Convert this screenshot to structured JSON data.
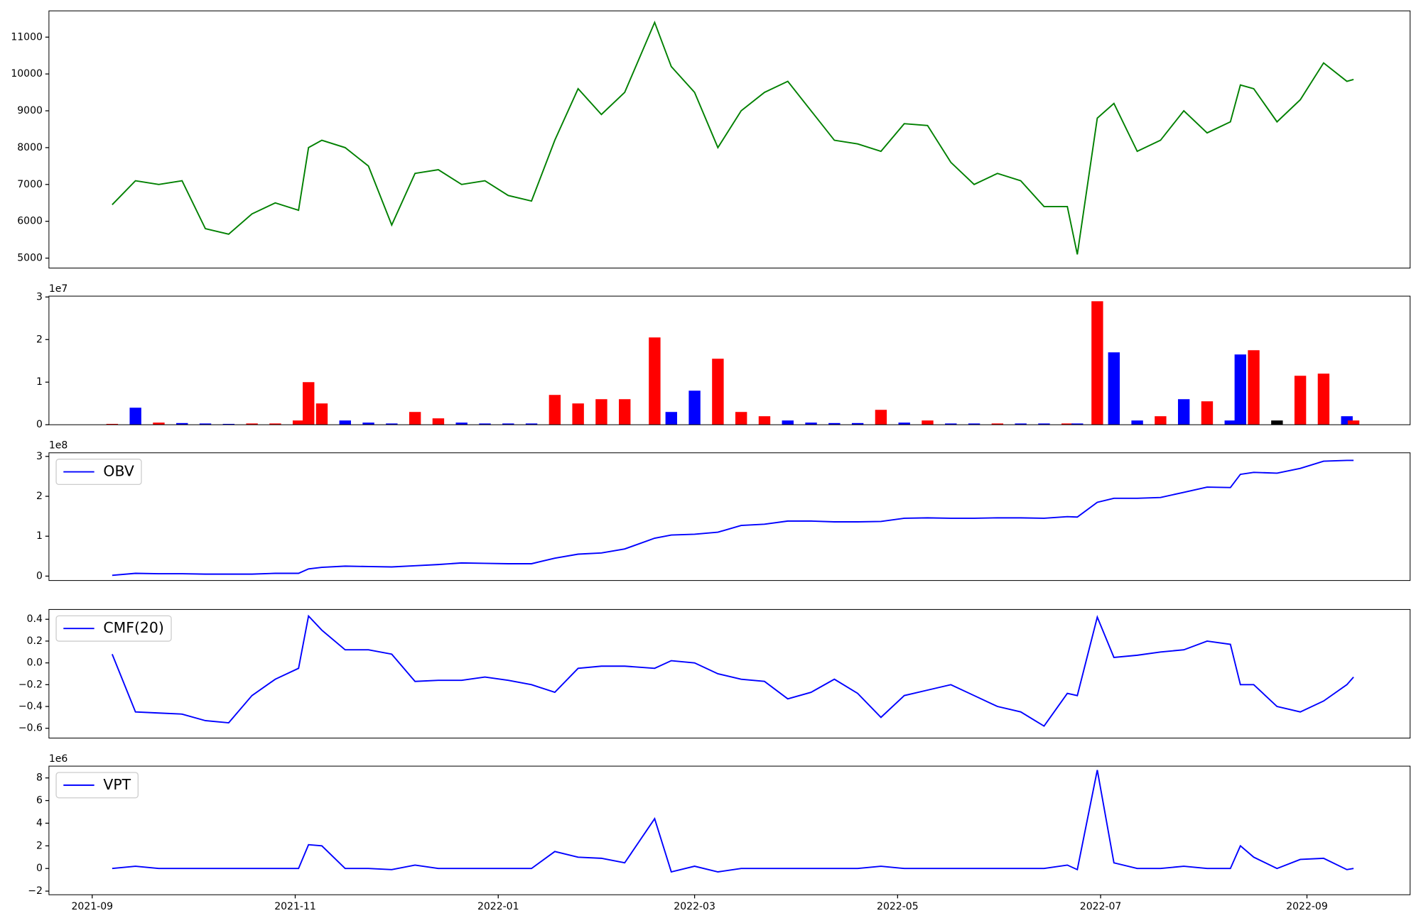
{
  "chart_data": [
    {
      "type": "line",
      "color": "green",
      "x": [
        "2021-09-07",
        "2021-09-14",
        "2021-09-21",
        "2021-09-28",
        "2021-10-05",
        "2021-10-12",
        "2021-10-19",
        "2021-10-26",
        "2021-11-02",
        "2021-11-05",
        "2021-11-09",
        "2021-11-16",
        "2021-11-23",
        "2021-11-30",
        "2021-12-07",
        "2021-12-14",
        "2021-12-21",
        "2021-12-28",
        "2022-01-04",
        "2022-01-11",
        "2022-01-18",
        "2022-01-25",
        "2022-02-01",
        "2022-02-08",
        "2022-02-17",
        "2022-02-22",
        "2022-03-01",
        "2022-03-08",
        "2022-03-15",
        "2022-03-22",
        "2022-03-29",
        "2022-04-05",
        "2022-04-12",
        "2022-04-19",
        "2022-04-26",
        "2022-05-03",
        "2022-05-10",
        "2022-05-17",
        "2022-05-24",
        "2022-05-31",
        "2022-06-07",
        "2022-06-14",
        "2022-06-21",
        "2022-06-24",
        "2022-06-30",
        "2022-07-05",
        "2022-07-12",
        "2022-07-19",
        "2022-07-26",
        "2022-08-02",
        "2022-08-09",
        "2022-08-12",
        "2022-08-16",
        "2022-08-23",
        "2022-08-30",
        "2022-09-06",
        "2022-09-13",
        "2022-09-15"
      ],
      "values": [
        6450,
        7100,
        7000,
        7100,
        5800,
        5650,
        6200,
        6500,
        6300,
        8000,
        8200,
        8000,
        7500,
        5900,
        7300,
        7400,
        7000,
        7100,
        6700,
        6550,
        8200,
        9600,
        8900,
        9500,
        11400,
        10200,
        9500,
        8000,
        9000,
        9500,
        9800,
        9000,
        8200,
        8100,
        7900,
        8650,
        8600,
        7600,
        7000,
        7300,
        7100,
        6400,
        6400,
        5100,
        8800,
        9200,
        7900,
        8200,
        9000,
        8400,
        8700,
        9700,
        9600,
        8700,
        9300,
        10300,
        9800,
        9850
      ],
      "xlim": [
        "2021-08-19",
        "2022-10-02"
      ],
      "ylim": [
        4730,
        11713
      ],
      "yticks": [
        5000,
        6000,
        7000,
        8000,
        9000,
        10000,
        11000
      ]
    },
    {
      "type": "bar",
      "y_offset": "1e7",
      "x": [
        "2021-09-07",
        "2021-09-14",
        "2021-09-21",
        "2021-09-28",
        "2021-10-05",
        "2021-10-12",
        "2021-10-19",
        "2021-10-26",
        "2021-11-02",
        "2021-11-05",
        "2021-11-09",
        "2021-11-16",
        "2021-11-23",
        "2021-11-30",
        "2021-12-07",
        "2021-12-14",
        "2021-12-21",
        "2021-12-28",
        "2022-01-04",
        "2022-01-11",
        "2022-01-18",
        "2022-01-25",
        "2022-02-01",
        "2022-02-08",
        "2022-02-17",
        "2022-02-22",
        "2022-03-01",
        "2022-03-08",
        "2022-03-15",
        "2022-03-22",
        "2022-03-29",
        "2022-04-05",
        "2022-04-12",
        "2022-04-19",
        "2022-04-26",
        "2022-05-03",
        "2022-05-10",
        "2022-05-17",
        "2022-05-24",
        "2022-05-31",
        "2022-06-07",
        "2022-06-14",
        "2022-06-21",
        "2022-06-24",
        "2022-06-30",
        "2022-07-05",
        "2022-07-12",
        "2022-07-19",
        "2022-07-26",
        "2022-08-02",
        "2022-08-09",
        "2022-08-12",
        "2022-08-16",
        "2022-08-23",
        "2022-08-30",
        "2022-09-06",
        "2022-09-13",
        "2022-09-15"
      ],
      "values": [
        0.02,
        0.4,
        0.05,
        0.04,
        0.03,
        0.02,
        0.03,
        0.03,
        0.1,
        1.0,
        0.5,
        0.1,
        0.05,
        0.03,
        0.3,
        0.15,
        0.05,
        0.03,
        0.03,
        0.03,
        0.7,
        0.5,
        0.6,
        0.6,
        2.05,
        0.3,
        0.8,
        1.55,
        0.3,
        0.2,
        0.1,
        0.05,
        0.04,
        0.04,
        0.35,
        0.05,
        0.1,
        0.03,
        0.03,
        0.03,
        0.03,
        0.03,
        0.03,
        0.03,
        2.9,
        1.7,
        0.1,
        0.2,
        0.6,
        0.55,
        0.1,
        1.65,
        1.75,
        0.1,
        1.15,
        1.2,
        0.2,
        0.1
      ],
      "colors": [
        "red",
        "blue",
        "red",
        "blue",
        "blue",
        "blue",
        "red",
        "red",
        "red",
        "red",
        "red",
        "blue",
        "blue",
        "blue",
        "red",
        "red",
        "blue",
        "blue",
        "blue",
        "blue",
        "red",
        "red",
        "red",
        "red",
        "red",
        "blue",
        "blue",
        "red",
        "red",
        "red",
        "blue",
        "blue",
        "blue",
        "blue",
        "red",
        "blue",
        "red",
        "blue",
        "blue",
        "red",
        "blue",
        "blue",
        "red",
        "blue",
        "red",
        "blue",
        "blue",
        "red",
        "blue",
        "red",
        "blue",
        "blue",
        "red",
        "black",
        "red",
        "red",
        "blue",
        "red"
      ],
      "xlim": [
        "2021-08-19",
        "2022-10-02"
      ],
      "ylim": [
        0,
        3.02
      ],
      "yticks": [
        0,
        1,
        2,
        3
      ]
    },
    {
      "type": "line",
      "y_offset": "1e8",
      "legend": "upper left",
      "x": [
        "2021-09-07",
        "2021-09-14",
        "2021-09-21",
        "2021-09-28",
        "2021-10-05",
        "2021-10-12",
        "2021-10-19",
        "2021-10-26",
        "2021-11-02",
        "2021-11-05",
        "2021-11-09",
        "2021-11-16",
        "2021-11-23",
        "2021-11-30",
        "2021-12-07",
        "2021-12-14",
        "2021-12-21",
        "2021-12-28",
        "2022-01-04",
        "2022-01-11",
        "2022-01-18",
        "2022-01-25",
        "2022-02-01",
        "2022-02-08",
        "2022-02-17",
        "2022-02-22",
        "2022-03-01",
        "2022-03-08",
        "2022-03-15",
        "2022-03-22",
        "2022-03-29",
        "2022-04-05",
        "2022-04-12",
        "2022-04-19",
        "2022-04-26",
        "2022-05-03",
        "2022-05-10",
        "2022-05-17",
        "2022-05-24",
        "2022-05-31",
        "2022-06-07",
        "2022-06-14",
        "2022-06-21",
        "2022-06-24",
        "2022-06-30",
        "2022-07-05",
        "2022-07-12",
        "2022-07-19",
        "2022-07-26",
        "2022-08-02",
        "2022-08-09",
        "2022-08-12",
        "2022-08-16",
        "2022-08-23",
        "2022-08-30",
        "2022-09-06",
        "2022-09-13",
        "2022-09-15"
      ],
      "series": [
        {
          "name": "OBV",
          "color": "blue",
          "values": [
            0.02,
            0.07,
            0.06,
            0.06,
            0.05,
            0.05,
            0.05,
            0.07,
            0.07,
            0.18,
            0.22,
            0.25,
            0.24,
            0.23,
            0.26,
            0.29,
            0.33,
            0.32,
            0.31,
            0.31,
            0.45,
            0.55,
            0.58,
            0.68,
            0.95,
            1.03,
            1.05,
            1.1,
            1.27,
            1.3,
            1.38,
            1.38,
            1.36,
            1.36,
            1.37,
            1.45,
            1.46,
            1.45,
            1.45,
            1.46,
            1.46,
            1.45,
            1.49,
            1.48,
            1.85,
            1.95,
            1.95,
            1.97,
            2.1,
            2.23,
            2.22,
            2.55,
            2.6,
            2.58,
            2.7,
            2.88,
            2.9,
            2.9
          ]
        }
      ],
      "xlim": [
        "2021-08-19",
        "2022-10-02"
      ],
      "ylim": [
        -0.11,
        3.09
      ],
      "yticks": [
        0,
        1,
        2,
        3
      ]
    },
    {
      "type": "line",
      "legend": "upper left",
      "x": [
        "2021-09-07",
        "2021-09-14",
        "2021-09-21",
        "2021-09-28",
        "2021-10-05",
        "2021-10-12",
        "2021-10-19",
        "2021-10-26",
        "2021-11-02",
        "2021-11-05",
        "2021-11-09",
        "2021-11-16",
        "2021-11-23",
        "2021-11-30",
        "2021-12-07",
        "2021-12-14",
        "2021-12-21",
        "2021-12-28",
        "2022-01-04",
        "2022-01-11",
        "2022-01-18",
        "2022-01-25",
        "2022-02-01",
        "2022-02-08",
        "2022-02-17",
        "2022-02-22",
        "2022-03-01",
        "2022-03-08",
        "2022-03-15",
        "2022-03-22",
        "2022-03-29",
        "2022-04-05",
        "2022-04-12",
        "2022-04-19",
        "2022-04-26",
        "2022-05-03",
        "2022-05-10",
        "2022-05-17",
        "2022-05-24",
        "2022-05-31",
        "2022-06-07",
        "2022-06-14",
        "2022-06-21",
        "2022-06-24",
        "2022-06-30",
        "2022-07-05",
        "2022-07-12",
        "2022-07-19",
        "2022-07-26",
        "2022-08-02",
        "2022-08-09",
        "2022-08-12",
        "2022-08-16",
        "2022-08-23",
        "2022-08-30",
        "2022-09-06",
        "2022-09-13",
        "2022-09-15"
      ],
      "series": [
        {
          "name": "CMF(20)",
          "color": "blue",
          "values": [
            0.08,
            -0.45,
            -0.46,
            -0.47,
            -0.53,
            -0.55,
            -0.3,
            -0.15,
            -0.05,
            0.43,
            0.3,
            0.12,
            0.12,
            0.08,
            -0.17,
            -0.16,
            -0.16,
            -0.13,
            -0.16,
            -0.2,
            -0.27,
            -0.05,
            -0.03,
            -0.03,
            -0.05,
            0.02,
            0.0,
            -0.1,
            -0.15,
            -0.17,
            -0.33,
            -0.27,
            -0.15,
            -0.28,
            -0.5,
            -0.3,
            -0.25,
            -0.2,
            -0.3,
            -0.4,
            -0.45,
            -0.58,
            -0.28,
            -0.3,
            0.42,
            0.05,
            0.07,
            0.1,
            0.12,
            0.2,
            0.17,
            -0.2,
            -0.2,
            -0.4,
            -0.45,
            -0.35,
            -0.2,
            -0.13
          ]
        }
      ],
      "xlim": [
        "2021-08-19",
        "2022-10-02"
      ],
      "ylim": [
        -0.69,
        0.49
      ],
      "yticks": [
        {
          "value": -0.6,
          "label": "−0.6"
        },
        {
          "value": -0.4,
          "label": "−0.4"
        },
        {
          "value": -0.2,
          "label": "−0.2"
        },
        {
          "value": 0,
          "label": "0.0"
        },
        0.2,
        0.4
      ]
    },
    {
      "type": "line",
      "y_offset": "1e6",
      "legend": "upper left",
      "x": [
        "2021-09-07",
        "2021-09-14",
        "2021-09-21",
        "2021-09-28",
        "2021-10-05",
        "2021-10-12",
        "2021-10-19",
        "2021-10-26",
        "2021-11-02",
        "2021-11-05",
        "2021-11-09",
        "2021-11-16",
        "2021-11-23",
        "2021-11-30",
        "2021-12-07",
        "2021-12-14",
        "2021-12-21",
        "2021-12-28",
        "2022-01-04",
        "2022-01-11",
        "2022-01-18",
        "2022-01-25",
        "2022-02-01",
        "2022-02-08",
        "2022-02-17",
        "2022-02-22",
        "2022-03-01",
        "2022-03-08",
        "2022-03-15",
        "2022-03-22",
        "2022-03-29",
        "2022-04-05",
        "2022-04-12",
        "2022-04-19",
        "2022-04-26",
        "2022-05-03",
        "2022-05-10",
        "2022-05-17",
        "2022-05-24",
        "2022-05-31",
        "2022-06-07",
        "2022-06-14",
        "2022-06-21",
        "2022-06-24",
        "2022-06-30",
        "2022-07-05",
        "2022-07-12",
        "2022-07-19",
        "2022-07-26",
        "2022-08-02",
        "2022-08-09",
        "2022-08-12",
        "2022-08-16",
        "2022-08-23",
        "2022-08-30",
        "2022-09-06",
        "2022-09-13",
        "2022-09-15"
      ],
      "series": [
        {
          "name": "VPT",
          "color": "blue",
          "values": [
            0,
            0.2,
            0,
            0,
            0,
            0,
            0,
            0,
            0,
            2.1,
            2.0,
            0,
            0,
            -0.1,
            0.3,
            0,
            0,
            0,
            0,
            0,
            1.5,
            1.0,
            0.9,
            0.5,
            4.4,
            -0.3,
            0.2,
            -0.3,
            0,
            0,
            0,
            0,
            0,
            0,
            0.2,
            0,
            0,
            0,
            0,
            0,
            0,
            0,
            0.3,
            -0.1,
            8.7,
            0.5,
            0,
            0,
            0.2,
            0,
            0,
            2.0,
            1.0,
            0,
            0.8,
            0.9,
            -0.1,
            0
          ]
        }
      ],
      "xlim": [
        "2021-08-19",
        "2022-10-02"
      ],
      "ylim": [
        -2.32,
        9.04
      ],
      "yticks": [
        {
          "value": -2,
          "label": "−2"
        },
        0,
        2,
        4,
        6,
        8
      ],
      "xticks": [
        {
          "value": "2021-09-01",
          "label": "2021-09"
        },
        {
          "value": "2021-11-01",
          "label": "2021-11"
        },
        {
          "value": "2022-01-01",
          "label": "2022-01"
        },
        {
          "value": "2022-03-01",
          "label": "2022-03"
        },
        {
          "value": "2022-05-01",
          "label": "2022-05"
        },
        {
          "value": "2022-07-01",
          "label": "2022-07"
        },
        {
          "value": "2022-09-01",
          "label": "2022-09"
        }
      ]
    }
  ]
}
